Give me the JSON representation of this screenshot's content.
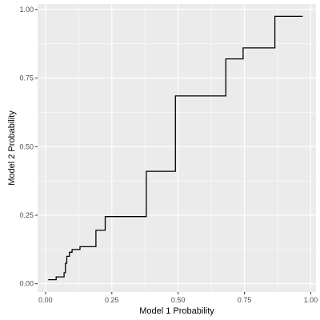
{
  "chart_data": {
    "type": "line",
    "line_shape": "step",
    "xlabel": "Model 1 Probability",
    "ylabel": "Model 2 Probability",
    "xlim": [
      -0.03,
      1.02
    ],
    "ylim": [
      -0.03,
      1.02
    ],
    "x_ticks": [
      0.0,
      0.25,
      0.5,
      0.75,
      1.0
    ],
    "x_tick_labels": [
      "0.00",
      "0.25",
      "0.50",
      "0.75",
      "1.00"
    ],
    "y_ticks": [
      0.0,
      0.25,
      0.5,
      0.75,
      1.0
    ],
    "y_tick_labels": [
      "0.00",
      "0.25",
      "0.50",
      "0.75",
      "1.00"
    ],
    "grid": true,
    "colors": {
      "panel": "#ebebeb",
      "grid": "#ffffff",
      "line": "#000000"
    },
    "series": [
      {
        "x": [
          0.01,
          0.04,
          0.07,
          0.075,
          0.08,
          0.09,
          0.1,
          0.13,
          0.19,
          0.225,
          0.38,
          0.49,
          0.68,
          0.745,
          0.865,
          0.97
        ],
        "y": [
          0.015,
          0.025,
          0.04,
          0.075,
          0.1,
          0.115,
          0.125,
          0.135,
          0.195,
          0.245,
          0.41,
          0.685,
          0.82,
          0.86,
          0.975,
          0.975
        ]
      }
    ]
  }
}
